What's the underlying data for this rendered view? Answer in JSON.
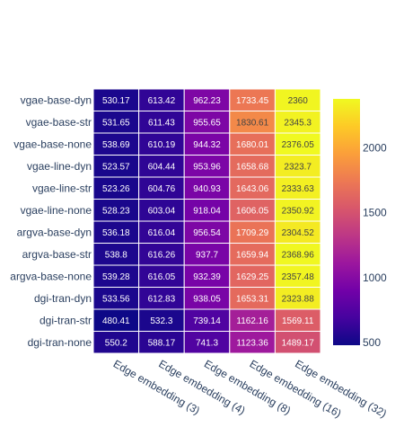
{
  "chart_data": {
    "type": "heatmap",
    "title": "",
    "xlabel": "",
    "ylabel": "",
    "x_categories": [
      "Edge embedding (3)",
      "Edge embedding (4)",
      "Edge embedding (8)",
      "Edge embedding (16)",
      "Edge embedding (32)"
    ],
    "y_categories": [
      "vgae-base-dyn",
      "vgae-base-str",
      "vgae-base-none",
      "vgae-line-dyn",
      "vgae-line-str",
      "vgae-line-none",
      "argva-base-dyn",
      "argva-base-str",
      "argva-base-none",
      "dgi-tran-dyn",
      "dgi-tran-str",
      "dgi-tran-none"
    ],
    "values": [
      [
        530.17,
        613.42,
        962.23,
        1733.45,
        2360
      ],
      [
        531.65,
        611.43,
        955.65,
        1830.61,
        2345.3
      ],
      [
        538.69,
        610.19,
        944.32,
        1680.01,
        2376.05
      ],
      [
        523.57,
        604.44,
        953.96,
        1658.68,
        2323.7
      ],
      [
        523.26,
        604.76,
        940.93,
        1643.06,
        2333.63
      ],
      [
        528.23,
        603.04,
        918.04,
        1606.05,
        2350.92
      ],
      [
        536.18,
        616.04,
        956.54,
        1709.29,
        2304.52
      ],
      [
        538.8,
        616.26,
        937.7,
        1659.94,
        2368.96
      ],
      [
        539.28,
        616.05,
        932.39,
        1629.25,
        2357.48
      ],
      [
        533.56,
        612.83,
        938.05,
        1653.31,
        2323.88
      ],
      [
        480.41,
        532.3,
        739.14,
        1162.16,
        1569.11
      ],
      [
        550.2,
        588.17,
        741.3,
        1123.36,
        1489.17
      ]
    ],
    "cell_labels": [
      [
        "530.17",
        "613.42",
        "962.23",
        "1733.45",
        "2360"
      ],
      [
        "531.65",
        "611.43",
        "955.65",
        "1830.61",
        "2345.3"
      ],
      [
        "538.69",
        "610.19",
        "944.32",
        "1680.01",
        "2376.05"
      ],
      [
        "523.57",
        "604.44",
        "953.96",
        "1658.68",
        "2323.7"
      ],
      [
        "523.26",
        "604.76",
        "940.93",
        "1643.06",
        "2333.63"
      ],
      [
        "528.23",
        "603.04",
        "918.04",
        "1606.05",
        "2350.92"
      ],
      [
        "536.18",
        "616.04",
        "956.54",
        "1709.29",
        "2304.52"
      ],
      [
        "538.8",
        "616.26",
        "937.7",
        "1659.94",
        "2368.96"
      ],
      [
        "539.28",
        "616.05",
        "932.39",
        "1629.25",
        "2357.48"
      ],
      [
        "533.56",
        "612.83",
        "938.05",
        "1653.31",
        "2323.88"
      ],
      [
        "480.41",
        "532.3",
        "739.14",
        "1162.16",
        "1569.11"
      ],
      [
        "550.2",
        "588.17",
        "741.3",
        "1123.36",
        "1489.17"
      ]
    ],
    "colorscale": "plasma",
    "color_range": [
      480.41,
      2376.05
    ],
    "colorbar_ticks": [
      {
        "value": 500,
        "label": "500"
      },
      {
        "value": 1000,
        "label": "1000"
      },
      {
        "value": 1500,
        "label": "1500"
      },
      {
        "value": 2000,
        "label": "2000"
      }
    ],
    "colorscale_colors": [
      "#0d0887",
      "#46039f",
      "#7201a8",
      "#9c179e",
      "#bd3786",
      "#d8576b",
      "#ed7953",
      "#fb9f3a",
      "#fdca26",
      "#f0f921"
    ],
    "x_tick_angle": "rotated 30 degrees downward",
    "grid": false,
    "legend": "colorbar right"
  }
}
